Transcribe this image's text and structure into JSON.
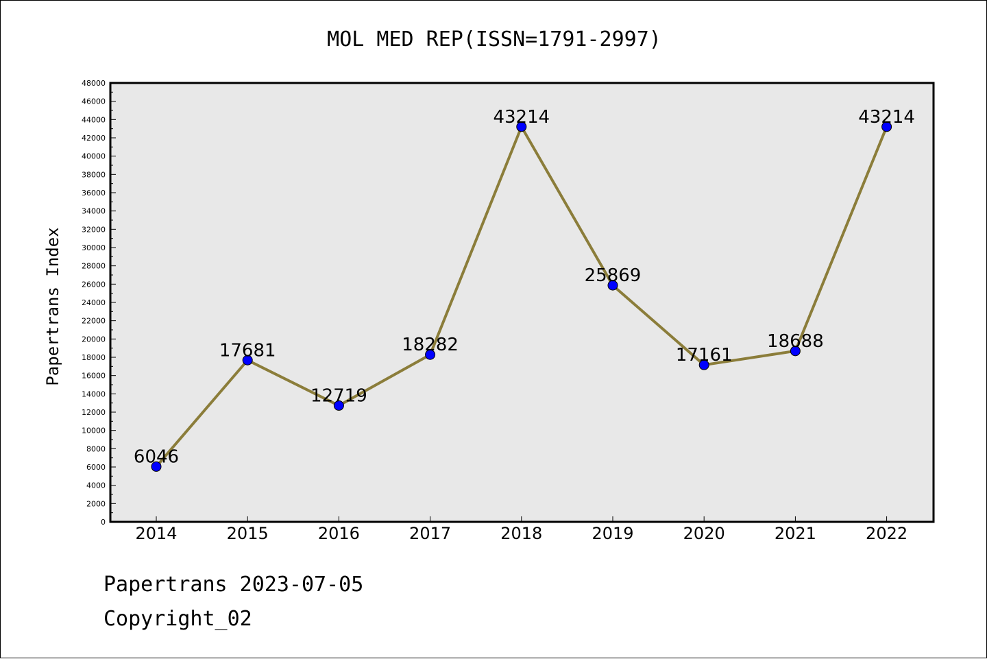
{
  "chart_data": {
    "type": "line",
    "title": "MOL MED REP(ISSN=1791-2997)",
    "ylabel": "Papertrans Index",
    "xlabel": "",
    "ylim": [
      0,
      48000
    ],
    "ytick_step": 2000,
    "grid": false,
    "categories": [
      "2014",
      "2015",
      "2016",
      "2017",
      "2018",
      "2019",
      "2020",
      "2021",
      "2022"
    ],
    "series": [
      {
        "values": [
          6046,
          17681,
          12719,
          18282,
          43214,
          25869,
          17161,
          18688,
          43214
        ]
      }
    ],
    "colors": {
      "line": "#8b7d3a",
      "marker": "#0000ff",
      "plot_background": "#e8e8e8"
    }
  },
  "footer": {
    "line1": "Papertrans 2023-07-05",
    "line2": "Copyright_02"
  }
}
